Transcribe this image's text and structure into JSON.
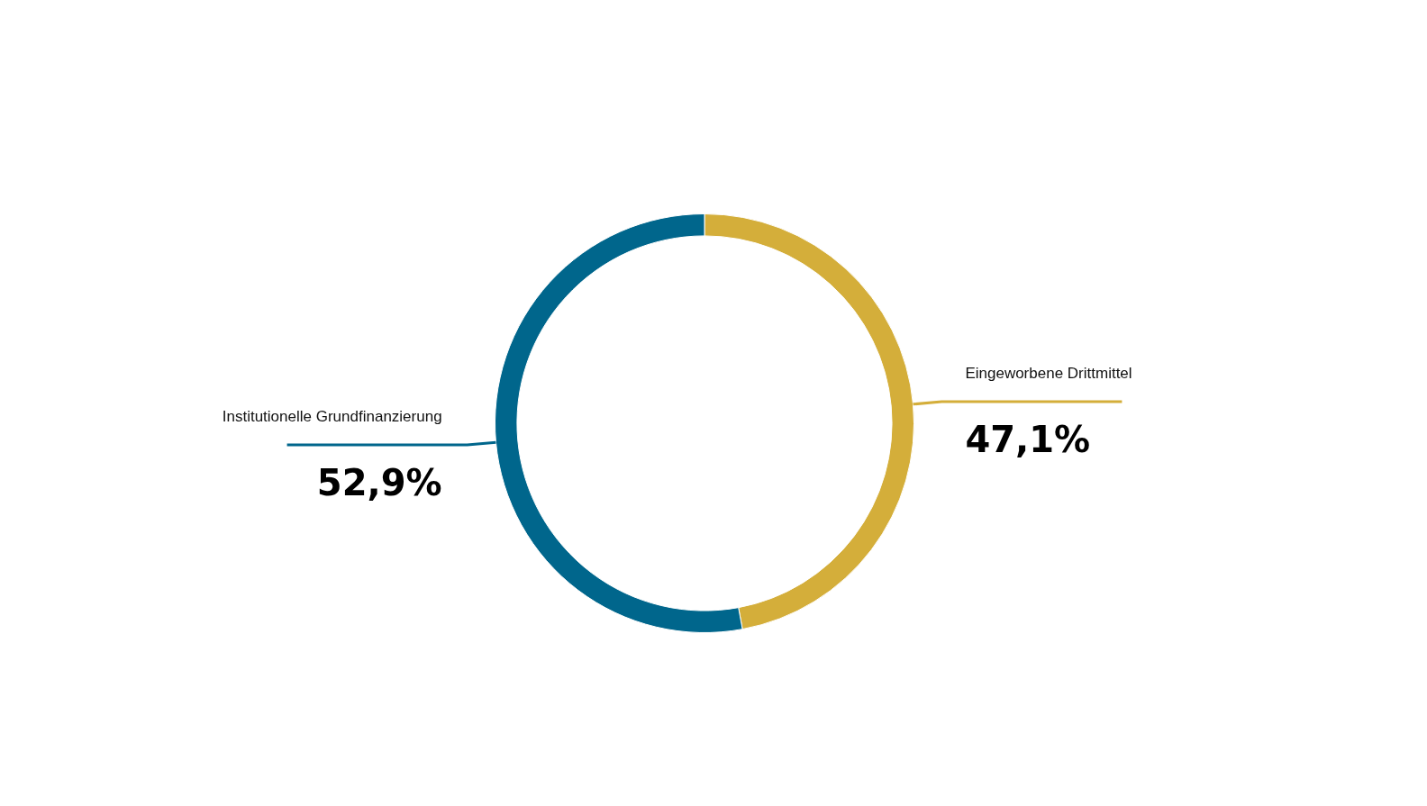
{
  "chart_data": {
    "type": "donut",
    "categories": [
      "Eingeworbene Drittmittel",
      "Institutionelle Grundfinanzierung"
    ],
    "values": [
      47.1,
      52.9
    ],
    "colors": [
      "#d4ae3a",
      "#00668c"
    ],
    "value_labels": [
      "47,1%",
      "52,9%"
    ]
  }
}
